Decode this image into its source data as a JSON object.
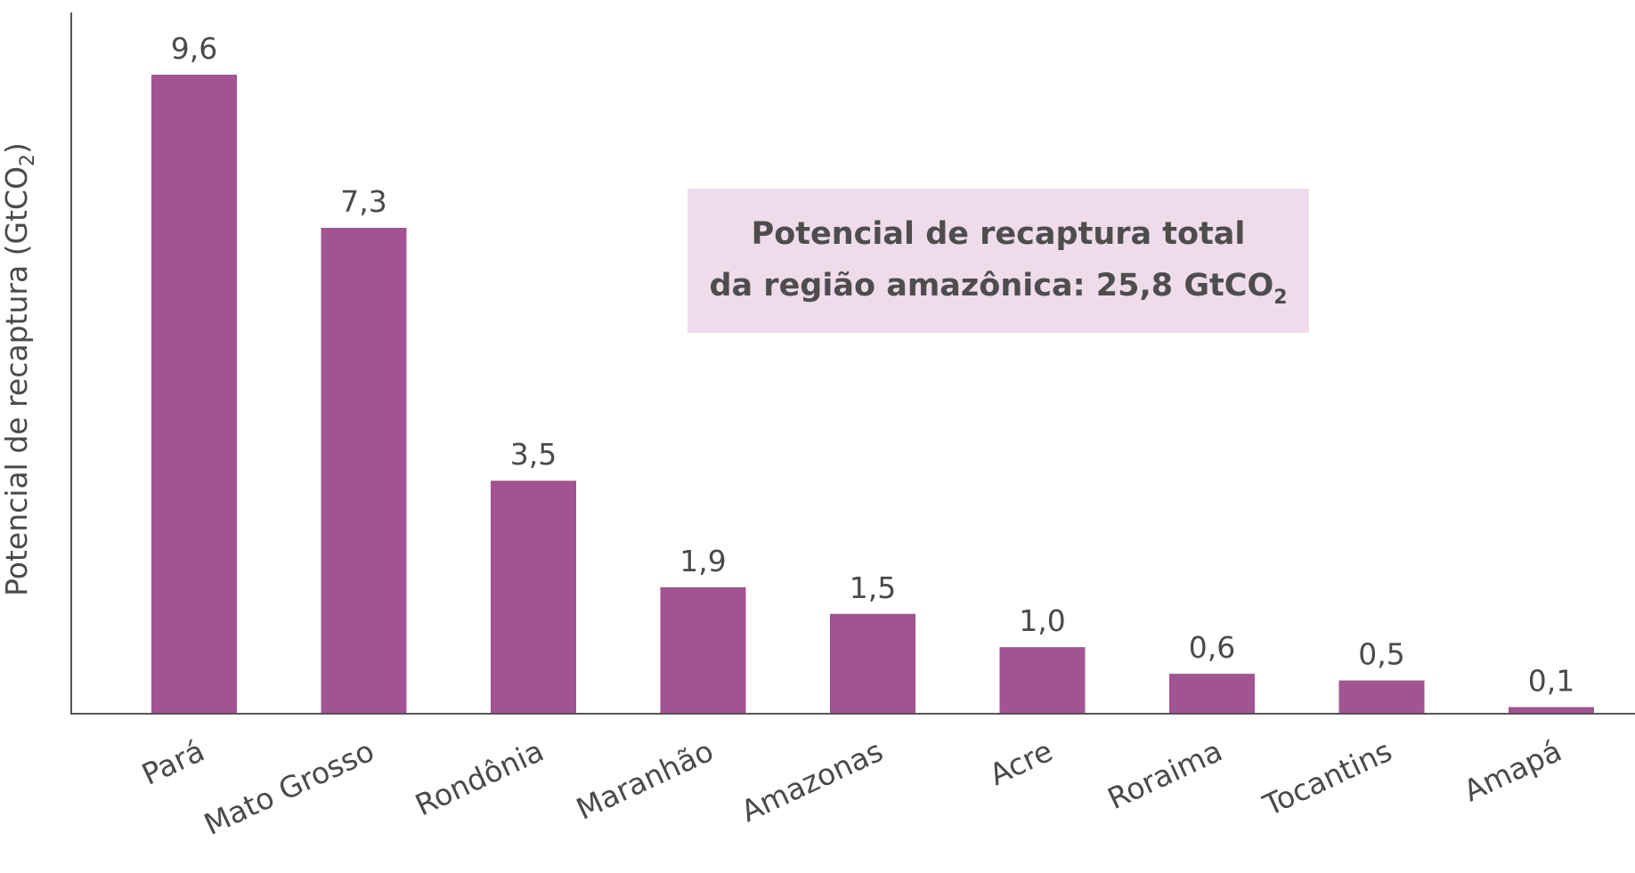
{
  "chart_data": {
    "type": "bar",
    "categories": [
      "Pará",
      "Mato Grosso",
      "Rondônia",
      "Maranhão",
      "Amazonas",
      "Acre",
      "Roraima",
      "Tocantins",
      "Amapá"
    ],
    "values": [
      9.6,
      7.3,
      3.5,
      1.9,
      1.5,
      1.0,
      0.6,
      0.5,
      0.1
    ],
    "value_labels": [
      "9,6",
      "7,3",
      "3,5",
      "1,9",
      "1,5",
      "1,0",
      "0,6",
      "0,5",
      "0,1"
    ],
    "ylabel": "Potencial de recaptura (GtCO",
    "ylabel_sub": "2",
    "ylabel_end": ")",
    "ylim": [
      0,
      10
    ],
    "grid": false,
    "bar_color": "#a25391",
    "annotation": {
      "line1": "Potencial de recaptura total",
      "line2": "da região amazônica: 25,8 GtCO",
      "line2_sub": "2",
      "background": "#efdcea"
    }
  }
}
